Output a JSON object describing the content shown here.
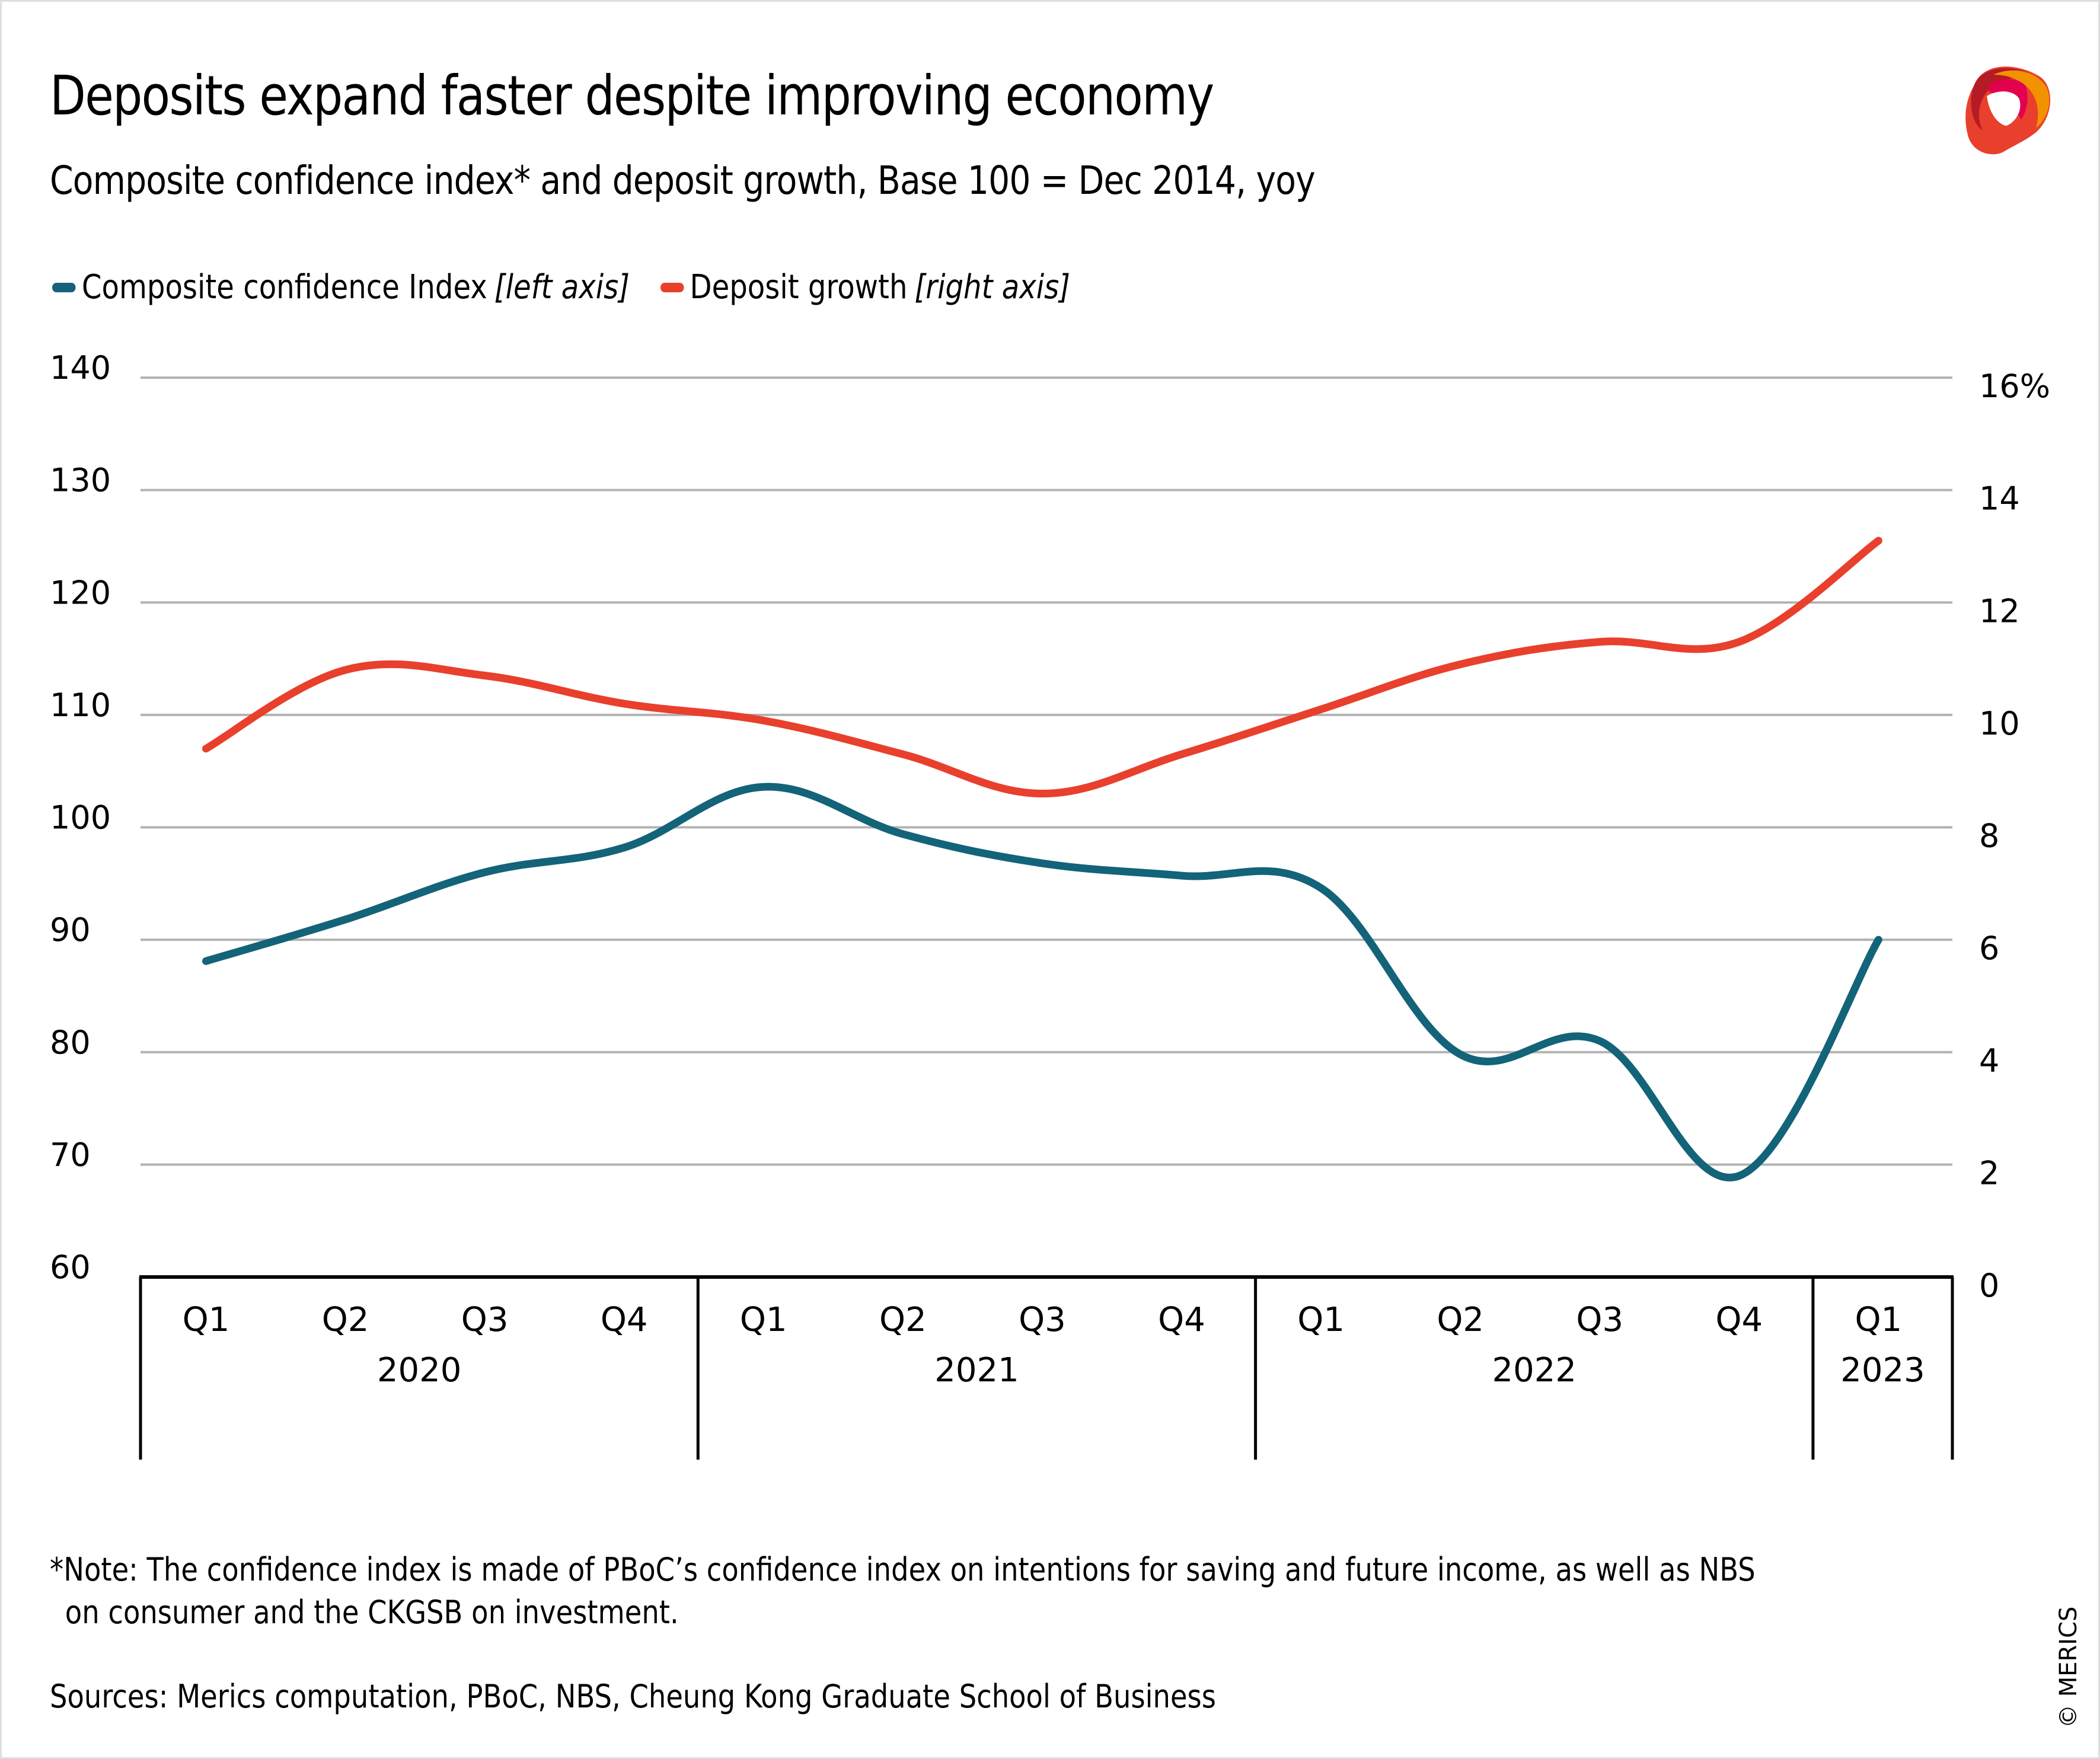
{
  "header": {
    "title": "Deposits expand faster despite improving economy",
    "subtitle": "Composite confidence index* and deposit growth, Base 100 = Dec 2014, yoy",
    "logo_icon": "merics-ribbon-logo-icon"
  },
  "legend": [
    {
      "label": "Composite confidence Index",
      "axis_note": "[left axis]",
      "color": "#136379"
    },
    {
      "label": "Deposit growth",
      "axis_note": "[right axis]",
      "color": "#e8402c"
    }
  ],
  "footer": {
    "note_line1": "*Note: The confidence index is made of PBoC’s confidence index on intentions for saving and future income, as well as NBS",
    "note_line2": "on consumer and the CKGSB on investment.",
    "sources": "Sources: Merics computation, PBoC,  NBS, Cheung Kong Graduate School of Business",
    "copyright": "© MERICS"
  },
  "colors": {
    "confidence": "#136379",
    "deposit": "#e8402c",
    "grid": "#b3b3b3",
    "axis": "#000000"
  },
  "chart_data": {
    "type": "line",
    "title": "Deposits expand faster despite improving economy",
    "subtitle": "Composite confidence index* and deposit growth, Base 100 = Dec 2014, yoy",
    "xlabel": "",
    "ylabel": "",
    "categories": [
      "Q1",
      "Q2",
      "Q3",
      "Q4",
      "Q1",
      "Q2",
      "Q3",
      "Q4",
      "Q1",
      "Q2",
      "Q3",
      "Q4",
      "Q1"
    ],
    "years": [
      {
        "label": "2020",
        "quarters": 4
      },
      {
        "label": "2021",
        "quarters": 4
      },
      {
        "label": "2022",
        "quarters": 4
      },
      {
        "label": "2023",
        "quarters": 1
      }
    ],
    "left_axis": {
      "ylim": [
        60,
        140
      ],
      "ticks": [
        "140",
        "130",
        "120",
        "110",
        "100",
        "90",
        "80",
        "70",
        "60"
      ],
      "tick_values": [
        140,
        130,
        120,
        110,
        100,
        90,
        80,
        70,
        60
      ]
    },
    "right_axis": {
      "ylim": [
        0,
        16
      ],
      "ticks": [
        "16%",
        "14",
        "12",
        "10",
        "8",
        "6",
        "4",
        "2",
        "0"
      ],
      "tick_values": [
        16,
        14,
        12,
        10,
        8,
        6,
        4,
        2,
        0
      ]
    },
    "grid": true,
    "legend_position": "top-left",
    "series": [
      {
        "name": "Composite confidence Index",
        "axis": "left",
        "values": [
          88.1,
          91.8,
          96.0,
          98.2,
          103.6,
          99.4,
          96.8,
          95.7,
          94.6,
          79.8,
          81.0,
          69.0,
          90.0
        ]
      },
      {
        "name": "Deposit growth",
        "axis": "right",
        "values": [
          9.4,
          10.8,
          10.7,
          10.2,
          9.9,
          9.3,
          8.6,
          9.3,
          10.1,
          10.9,
          11.3,
          11.3,
          13.1
        ]
      }
    ]
  }
}
